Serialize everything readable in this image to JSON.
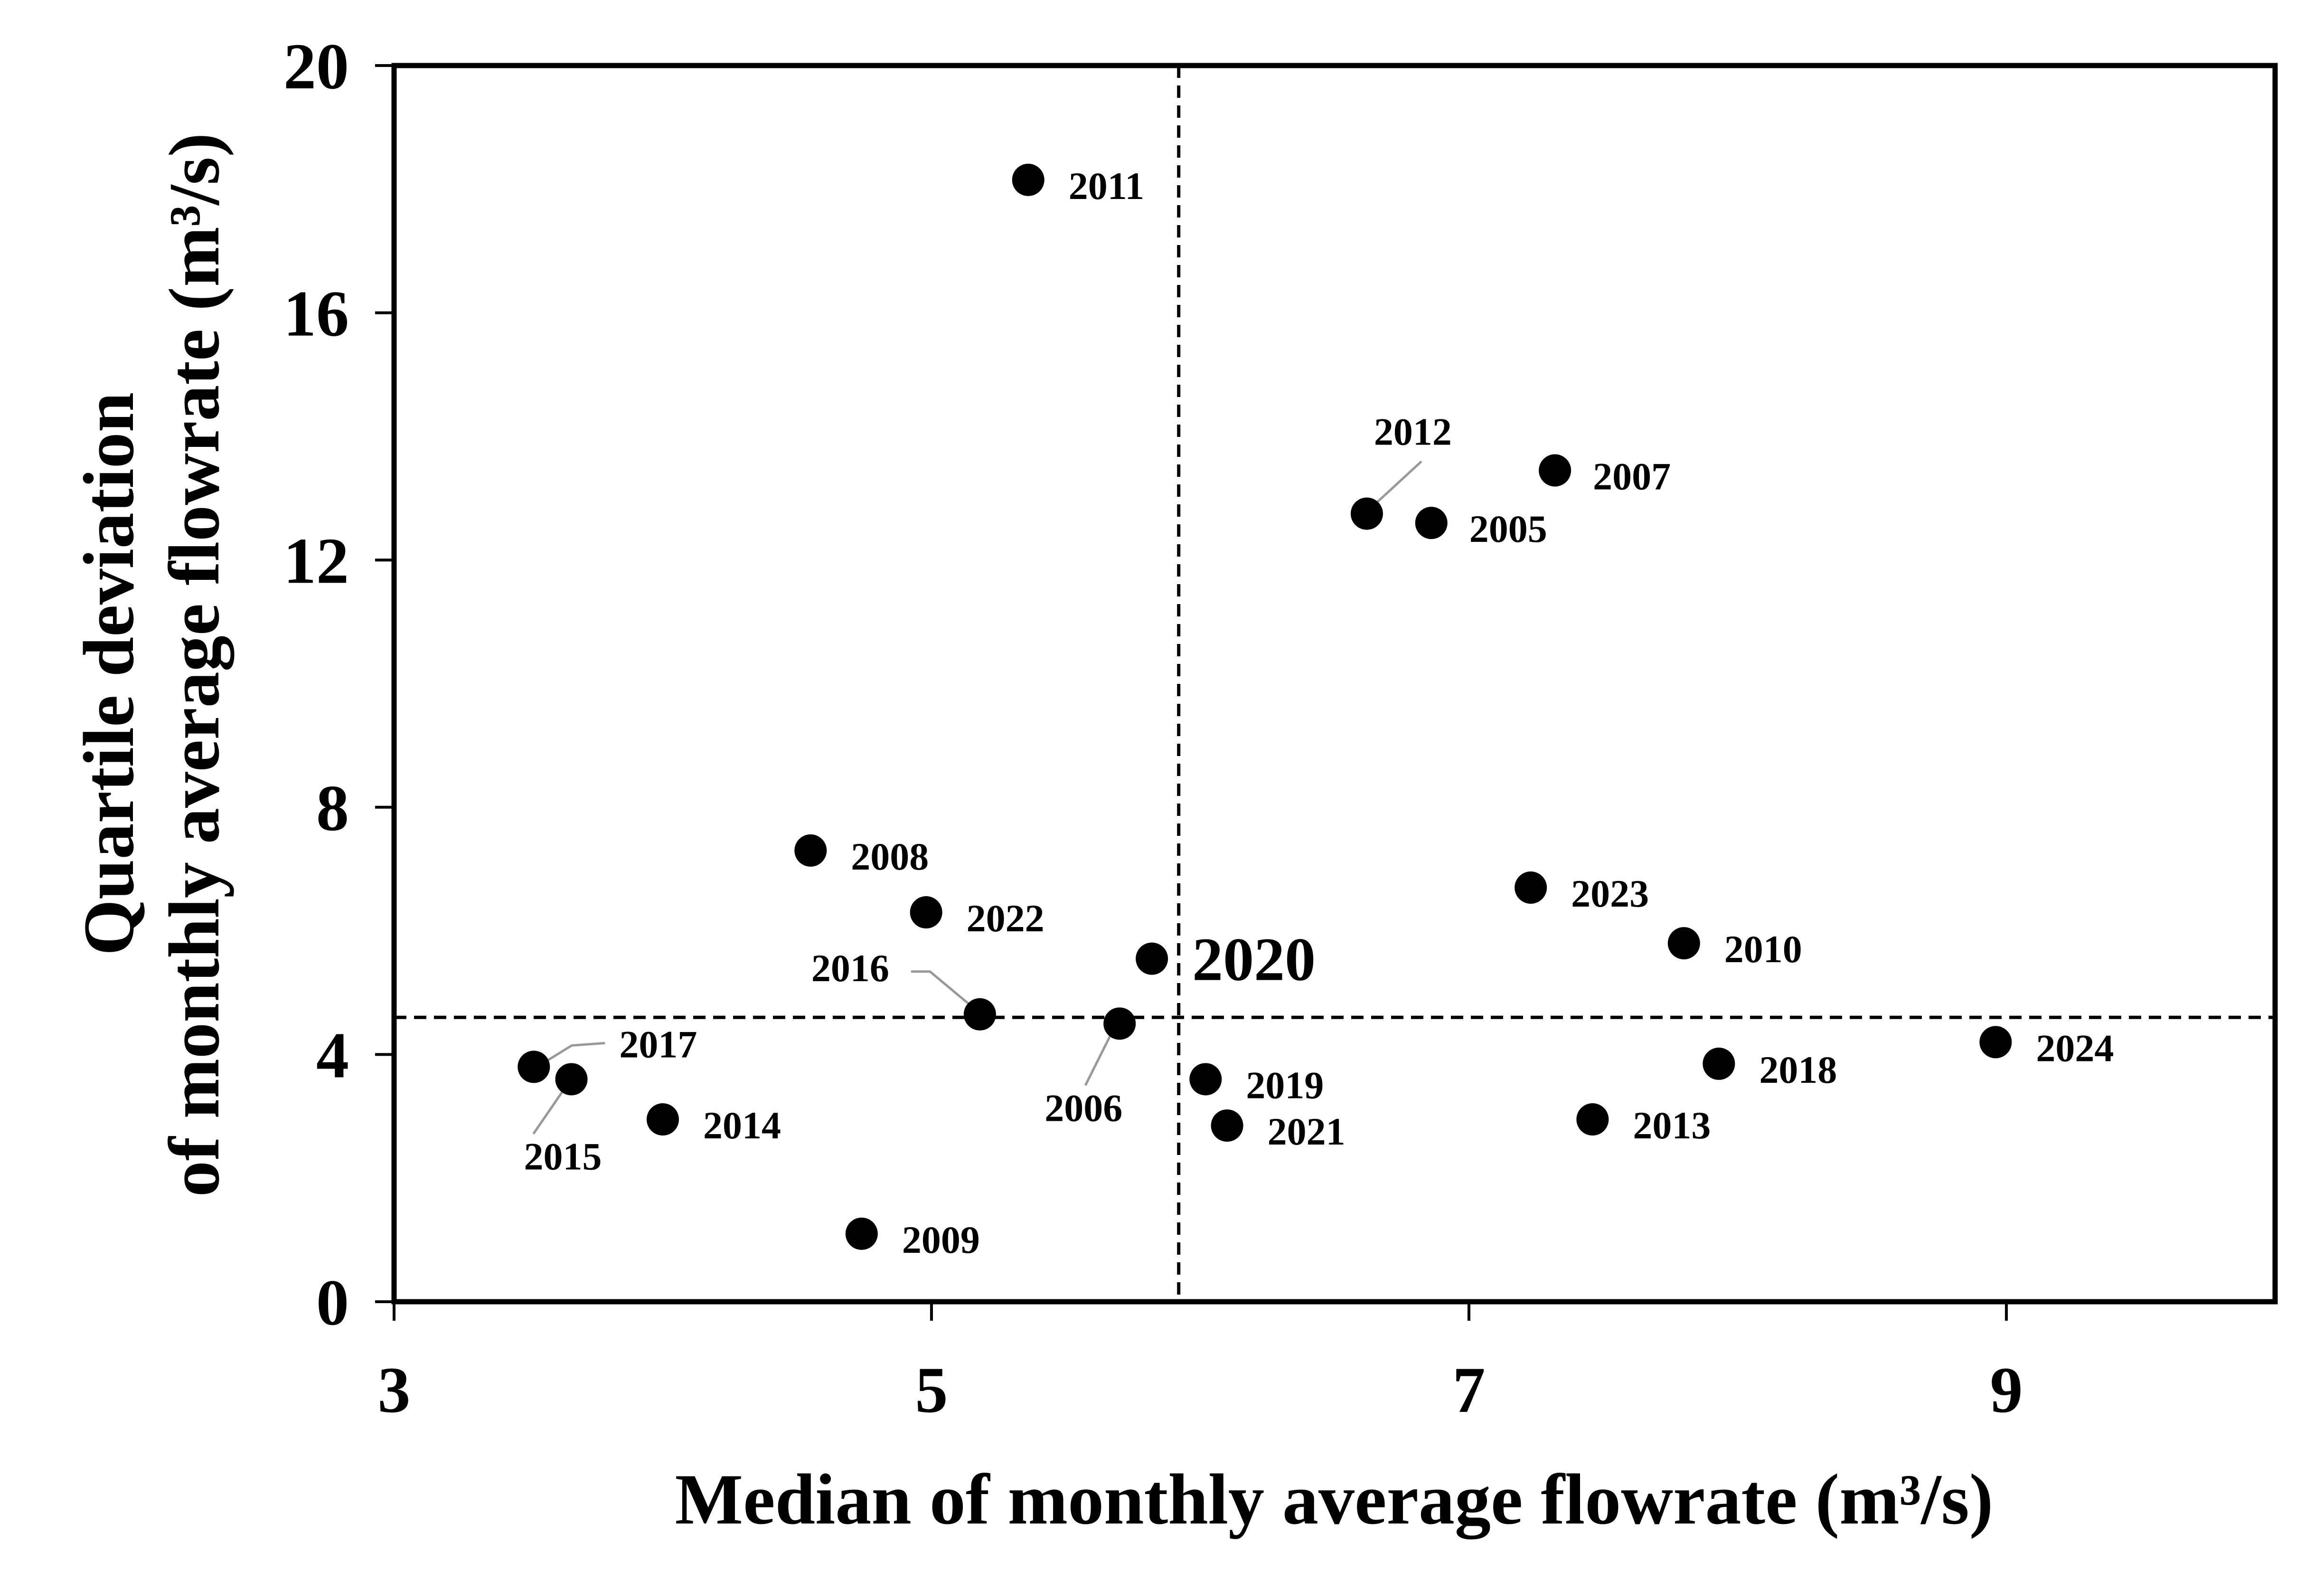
{
  "chart_data": {
    "type": "scatter",
    "xlabel": "Median of monthly average flowrate (m³/s)",
    "ylabel_line1": "Quartile deviation",
    "ylabel_line2": "of monthly average flowrate (m³/s)",
    "xlim": [
      3,
      10
    ],
    "ylim": [
      0,
      20
    ],
    "x_ticks": [
      3,
      5,
      7,
      9
    ],
    "y_ticks": [
      0,
      4,
      8,
      12,
      16,
      20
    ],
    "x_tick_labels": [
      "3",
      "5",
      "7",
      "9"
    ],
    "y_tick_labels": [
      "0",
      "4",
      "8",
      "12",
      "16",
      "20"
    ],
    "grid": false,
    "reference_lines": {
      "vertical_x": 5.92,
      "horizontal_y": 4.6
    },
    "marker_color": "#000000",
    "highlight_color": "#c00000",
    "points": [
      {
        "label": "2005",
        "x": 6.86,
        "y": 12.6
      },
      {
        "label": "2006",
        "x": 5.7,
        "y": 4.5
      },
      {
        "label": "2007",
        "x": 7.32,
        "y": 13.45
      },
      {
        "label": "2008",
        "x": 4.55,
        "y": 7.3
      },
      {
        "label": "2009",
        "x": 4.74,
        "y": 1.1
      },
      {
        "label": "2010",
        "x": 7.8,
        "y": 5.8
      },
      {
        "label": "2011",
        "x": 5.36,
        "y": 18.15
      },
      {
        "label": "2012",
        "x": 6.62,
        "y": 12.75
      },
      {
        "label": "2013",
        "x": 7.46,
        "y": 2.95
      },
      {
        "label": "2014",
        "x": 4.0,
        "y": 2.95
      },
      {
        "label": "2015",
        "x": 3.66,
        "y": 3.6
      },
      {
        "label": "2016",
        "x": 5.18,
        "y": 4.65
      },
      {
        "label": "2017",
        "x": 3.52,
        "y": 3.8
      },
      {
        "label": "2018",
        "x": 7.93,
        "y": 3.85
      },
      {
        "label": "2019",
        "x": 6.02,
        "y": 3.6
      },
      {
        "label": "2020",
        "x": 5.82,
        "y": 5.55,
        "highlight": true
      },
      {
        "label": "2021",
        "x": 6.1,
        "y": 2.85
      },
      {
        "label": "2022",
        "x": 4.98,
        "y": 6.3
      },
      {
        "label": "2023",
        "x": 7.23,
        "y": 6.7
      },
      {
        "label": "2024",
        "x": 8.96,
        "y": 4.2
      }
    ]
  }
}
